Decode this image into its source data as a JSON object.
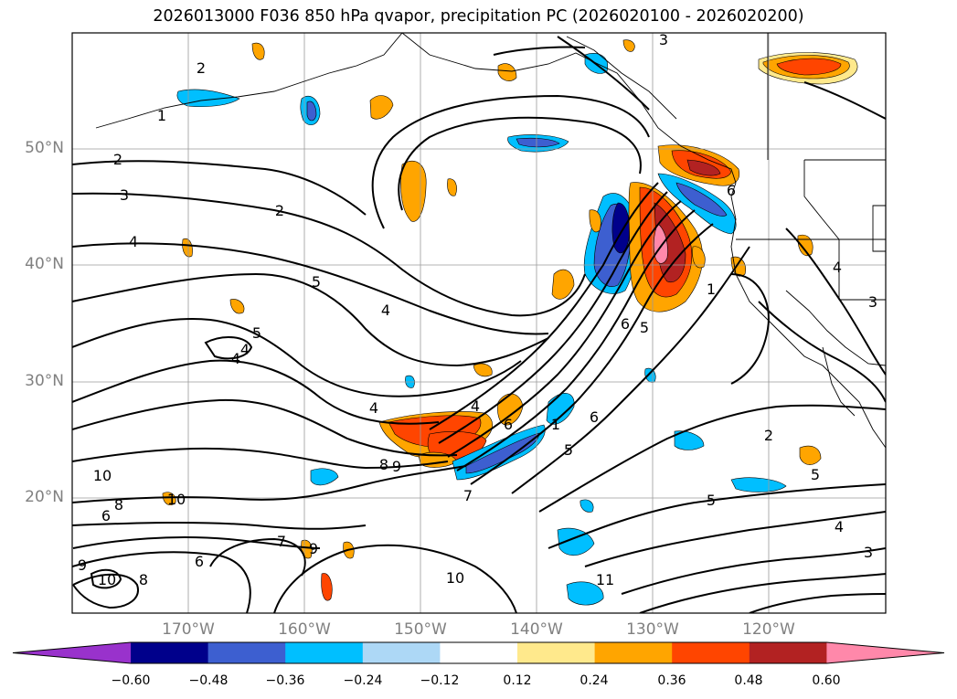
{
  "title": "2026013000 F036 850 hPa qvapor, precipitation PC (2026020100 - 2026020200)",
  "lat_labels": [
    "50°N",
    "40°N",
    "30°N",
    "20°N"
  ],
  "lon_labels": [
    "170°W",
    "160°W",
    "150°W",
    "140°W",
    "130°W",
    "120°W"
  ],
  "colorbar": {
    "ticks": [
      "−0.60",
      "−0.48",
      "−0.36",
      "−0.24",
      "−0.12",
      "0.12",
      "0.24",
      "0.36",
      "0.48",
      "0.60"
    ],
    "colors": [
      "#9932cc",
      "#00008b",
      "#3d5fd0",
      "#00bfff",
      "#add8f6",
      "#ffffff",
      "#ffe98c",
      "#ffa500",
      "#ff4500",
      "#b22222",
      "#ff88aa"
    ]
  },
  "contour_labels": [
    "3",
    "2",
    "1",
    "2",
    "3",
    "4",
    "2",
    "5",
    "4",
    "5",
    "4",
    "4",
    "4",
    "4",
    "8",
    "9",
    "10",
    "10",
    "8",
    "6",
    "6",
    "7",
    "9",
    "10",
    "9",
    "8",
    "1",
    "7",
    "5",
    "11",
    "10",
    "2",
    "5",
    "5",
    "4",
    "3",
    "6",
    "6",
    "6",
    "5",
    "1",
    "4",
    "3",
    "6"
  ]
}
